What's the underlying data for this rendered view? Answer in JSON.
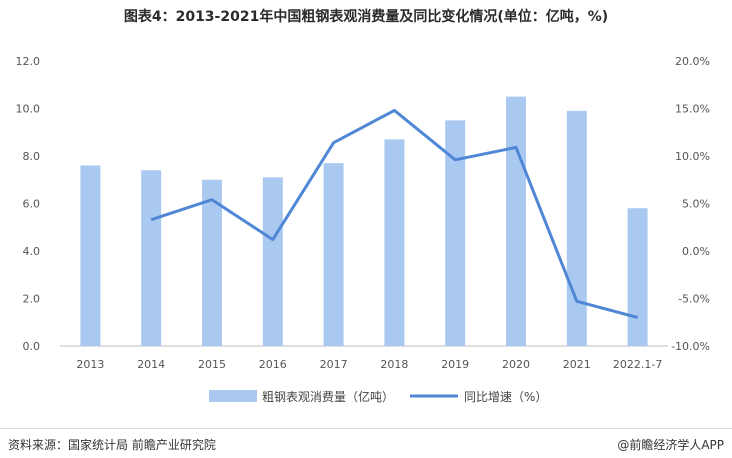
{
  "title": "图表4：2013-2021年中国粗钢表观消费量及同比变化情况(单位：亿吨，%)",
  "footer": {
    "source": "资料来源：国家统计局 前瞻产业研究院",
    "brand": "@前瞻经济学人APP"
  },
  "colors": {
    "bar": "#a9c9f0",
    "line": "#4f87d6"
  },
  "chart_data": {
    "type": "bar",
    "categories": [
      "2013",
      "2014",
      "2015",
      "2016",
      "2017",
      "2018",
      "2019",
      "2020",
      "2021",
      "2022.1-7"
    ],
    "series": [
      {
        "name": "粗钢表观消费量（亿吨）",
        "type": "bar",
        "axis": "left",
        "values": [
          7.6,
          7.4,
          7.0,
          7.1,
          7.7,
          8.7,
          9.5,
          10.5,
          9.9,
          5.8
        ]
      },
      {
        "name": "同比增速（%）",
        "type": "line",
        "axis": "right",
        "values": [
          null,
          3.3,
          5.4,
          1.2,
          11.4,
          14.8,
          9.6,
          10.9,
          -5.3,
          -7.0
        ]
      }
    ],
    "left_axis": {
      "min": 0,
      "max": 12,
      "ticks": [
        "0.0",
        "2.0",
        "4.0",
        "6.0",
        "8.0",
        "10.0",
        "12.0"
      ]
    },
    "right_axis": {
      "min": -10,
      "max": 20,
      "ticks": [
        "-10.0%",
        "-5.0%",
        "0.0%",
        "5.0%",
        "10.0%",
        "15.0%",
        "20.0%"
      ]
    },
    "legend_position": "bottom",
    "grid": false
  }
}
